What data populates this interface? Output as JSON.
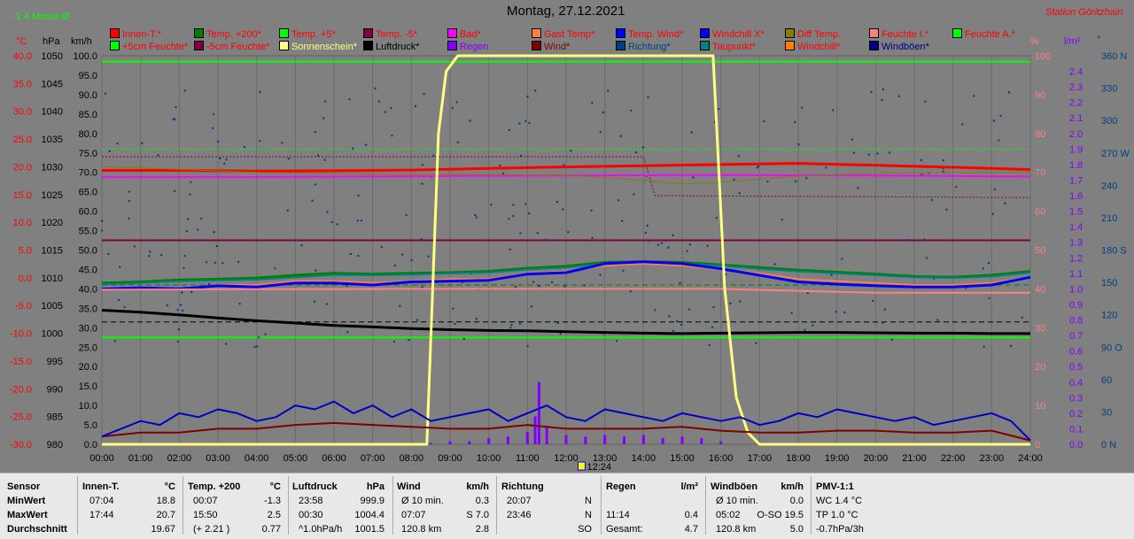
{
  "header": {
    "month_label": "-1.4 Monat-Ø",
    "title": "Montag, 27.12.2021",
    "station": "Station Göritzhain",
    "unit_c": "°C",
    "unit_hpa": "hPa",
    "unit_kmh": "km/h",
    "unit_pct": "%",
    "unit_lm2": "l/m²",
    "unit_deg": "°",
    "time_marker": "12:24"
  },
  "legend": [
    {
      "label": "Innen-T.*",
      "color": "#ff0000",
      "text_color": "#ff0000"
    },
    {
      "label": "Temp. +200*",
      "color": "#008000",
      "text_color": "#ff0000"
    },
    {
      "label": "Temp. +5*",
      "color": "#00ff00",
      "text_color": "#ff0000"
    },
    {
      "label": "Temp. -5*",
      "color": "#800040",
      "text_color": "#ff0000"
    },
    {
      "label": "Bad*",
      "color": "#ff00ff",
      "text_color": "#ff0000"
    },
    {
      "label": "Gast Temp*",
      "color": "#ff8040",
      "text_color": "#ff0000"
    },
    {
      "label": "Temp. Wind*",
      "color": "#0000ff",
      "text_color": "#ff0000"
    },
    {
      "label": "Windchill X*",
      "color": "#0000ff",
      "text_color": "#ff0000"
    },
    {
      "label": "Diff Temp.",
      "color": "#808000",
      "text_color": "#ff0000"
    },
    {
      "label": "Feuchte I.*",
      "color": "#ff8080",
      "text_color": "#ff0000"
    },
    {
      "label": "Feuchte A.*",
      "color": "#00ff00",
      "text_color": "#ff0000"
    },
    {
      "label": "+5cm Feuchte*",
      "color": "#00ff00",
      "text_color": "#ff0000"
    },
    {
      "label": "-5cm Feuchte*",
      "color": "#800040",
      "text_color": "#ff0000"
    },
    {
      "label": "Sonnenschein*",
      "color": "#ffff80",
      "text_color": "#ffff80"
    },
    {
      "label": "Luftdruck*",
      "color": "#000000",
      "text_color": "#000000"
    },
    {
      "label": "Regen",
      "color": "#8000ff",
      "text_color": "#8000ff"
    },
    {
      "label": "Wind*",
      "color": "#800000",
      "text_color": "#800000"
    },
    {
      "label": "Richtung*",
      "color": "#004080",
      "text_color": "#004080"
    },
    {
      "label": "Taupunkt*",
      "color": "#008080",
      "text_color": "#ff0000"
    },
    {
      "label": "Windchill*",
      "color": "#ff8000",
      "text_color": "#ff0000"
    },
    {
      "label": "Windböen*",
      "color": "#000080",
      "text_color": "#000080"
    }
  ],
  "chart_data": {
    "type": "line",
    "x_ticks": [
      "00:00",
      "01:00",
      "02:00",
      "03:00",
      "04:00",
      "05:00",
      "06:00",
      "07:00",
      "08:00",
      "09:00",
      "10:00",
      "11:00",
      "12:00",
      "13:00",
      "14:00",
      "15:00",
      "16:00",
      "17:00",
      "18:00",
      "19:00",
      "20:00",
      "21:00",
      "22:00",
      "23:00",
      "24:00"
    ],
    "axes": {
      "temp_c": {
        "ticks": [
          "40.0",
          "35.0",
          "30.0",
          "25.0",
          "20.0",
          "15.0",
          "10.0",
          "5.0",
          "0.0",
          "-5.0",
          "-10.0",
          "-15.0",
          "-20.0",
          "-25.0",
          "-30.0"
        ],
        "ylim": [
          -30,
          40
        ],
        "color": "#ff0000"
      },
      "pressure_hpa": {
        "ticks": [
          "1050",
          "1045",
          "1040",
          "1035",
          "1030",
          "1025",
          "1020",
          "1015",
          "1010",
          "1005",
          "1000",
          "995",
          "990",
          "985",
          "980"
        ],
        "ylim": [
          980,
          1050
        ],
        "color": "#000000"
      },
      "wind_kmh": {
        "ticks": [
          "100.0",
          "95.0",
          "90.0",
          "85.0",
          "80.0",
          "75.0",
          "70.0",
          "65.0",
          "60.0",
          "55.0",
          "50.0",
          "45.0",
          "40.0",
          "35.0",
          "30.0",
          "25.0",
          "20.0",
          "15.0",
          "10.0",
          "5.0",
          "0.0"
        ],
        "ylim": [
          0,
          100
        ],
        "color": "#000000"
      },
      "humidity_pct": {
        "ticks": [
          "100",
          "90",
          "80",
          "70",
          "60",
          "50",
          "40",
          "30",
          "20",
          "10",
          "0"
        ],
        "ylim": [
          0,
          100
        ],
        "color": "#ff8080"
      },
      "rain_lm2": {
        "ticks": [
          "2.4",
          "2.3",
          "2.2",
          "2.1",
          "2.0",
          "1.9",
          "1.8",
          "1.7",
          "1.6",
          "1.5",
          "1.4",
          "1.3",
          "1.2",
          "1.1",
          "1.0",
          "0.9",
          "0.8",
          "0.7",
          "0.6",
          "0.5",
          "0.4",
          "0.3",
          "0.2",
          "0.1",
          "0.0"
        ],
        "ylim": [
          0,
          2.5
        ],
        "color": "#8000ff"
      },
      "direction_deg": {
        "ticks": [
          "360 N",
          "330",
          "300",
          "270 W",
          "240",
          "210",
          "180 S",
          "150",
          "120",
          "90 O",
          "60",
          "30",
          "0 N"
        ],
        "ylim": [
          0,
          360
        ],
        "color": "#004080"
      }
    },
    "reference_lines": [
      {
        "name": "Temp. +5",
        "value": 98.5,
        "color": "#00ff00"
      },
      {
        "name": "Feuchte A.",
        "value": 27.5,
        "color": "#00ff00"
      },
      {
        "name": "Temp. -5",
        "value": 52.5,
        "color": "#800040"
      }
    ],
    "series": [
      {
        "name": "Innen-T.",
        "axis": "wind_kmh",
        "color": "#ff0000",
        "width": 3,
        "x": [
          0,
          2,
          4,
          6,
          8,
          10,
          12,
          14,
          16,
          18,
          20,
          22,
          24
        ],
        "y": [
          70.5,
          70.5,
          70.3,
          70.4,
          70.6,
          71.0,
          71.4,
          71.7,
          72.0,
          72.3,
          71.8,
          71.3,
          70.7
        ]
      },
      {
        "name": "Bad",
        "axis": "wind_kmh",
        "color": "#ff00ff",
        "width": 2,
        "x": [
          0,
          4,
          8,
          12,
          16,
          20,
          24
        ],
        "y": [
          68.8,
          68.8,
          69.0,
          69.2,
          69.3,
          69.2,
          68.9
        ]
      },
      {
        "name": "Diff Temp.",
        "axis": "wind_kmh",
        "color": "#808000",
        "width": 1,
        "x": [
          0,
          4,
          8,
          12,
          14,
          15,
          16,
          18,
          20,
          24
        ],
        "y": [
          71.5,
          70.0,
          69.5,
          69.3,
          68.0,
          67.0,
          67.5,
          69.0,
          69.8,
          70.0
        ]
      },
      {
        "name": "Luftdruck",
        "axis": "wind_kmh",
        "color": "#000000",
        "width": 3,
        "x": [
          0,
          1,
          2,
          3,
          4,
          5,
          6,
          7,
          8,
          9,
          10,
          11,
          12,
          13,
          14,
          15,
          16,
          17,
          18,
          19,
          20,
          21,
          22,
          23,
          24
        ],
        "y": [
          34.5,
          34.0,
          33.3,
          32.5,
          31.8,
          31.2,
          30.6,
          30.2,
          29.8,
          29.5,
          29.3,
          29.2,
          29.0,
          28.8,
          28.6,
          28.5,
          28.6,
          28.7,
          28.8,
          28.8,
          28.7,
          28.6,
          28.6,
          28.5,
          28.5
        ]
      },
      {
        "name": "Temp. +200",
        "axis": "wind_kmh",
        "color": "#008000",
        "width": 3,
        "x": [
          0,
          1,
          2,
          3,
          4,
          5,
          6,
          7,
          8,
          9,
          10,
          11,
          12,
          13,
          14,
          15,
          16,
          17,
          18,
          19,
          20,
          21,
          22,
          23,
          24
        ],
        "y": [
          41.5,
          41.8,
          42.3,
          42.5,
          42.8,
          43.5,
          44.0,
          43.8,
          44.0,
          44.2,
          44.5,
          45.3,
          45.8,
          46.8,
          47.0,
          46.8,
          46.2,
          45.5,
          44.8,
          44.3,
          43.8,
          43.2,
          43.0,
          43.5,
          44.5
        ]
      },
      {
        "name": "Taupunkt",
        "axis": "wind_kmh",
        "color": "#008080",
        "width": 2,
        "x": [
          0,
          1,
          2,
          3,
          4,
          5,
          6,
          7,
          8,
          9,
          10,
          11,
          12,
          13,
          14,
          15,
          16,
          17,
          18,
          19,
          20,
          21,
          22,
          23,
          24
        ],
        "y": [
          41.2,
          41.5,
          42.0,
          42.2,
          42.4,
          43.0,
          43.6,
          43.5,
          43.7,
          44.0,
          44.2,
          45.0,
          45.5,
          46.5,
          46.8,
          46.5,
          46.0,
          45.2,
          44.5,
          44.0,
          43.5,
          43.0,
          42.8,
          43.2,
          44.2
        ]
      },
      {
        "name": "Gast Temp",
        "axis": "wind_kmh",
        "color": "#ff8040",
        "width": 2,
        "x": [
          0,
          1,
          2,
          3,
          4,
          5,
          6,
          7,
          8,
          9,
          10,
          11,
          12,
          13,
          14,
          15,
          16,
          17,
          18,
          19,
          20,
          21,
          22,
          23,
          24
        ],
        "y": [
          40.2,
          40.5,
          40.0,
          41.0,
          41.0,
          42.0,
          42.0,
          41.5,
          42.0,
          42.5,
          42.5,
          44.0,
          44.5,
          46.0,
          46.5,
          46.0,
          45.0,
          44.0,
          42.5,
          42.0,
          41.5,
          41.0,
          41.0,
          41.5,
          43.0
        ]
      },
      {
        "name": "Temp. Wind",
        "axis": "wind_kmh",
        "color": "#0000ff",
        "width": 3,
        "x": [
          0,
          1,
          2,
          3,
          4,
          5,
          6,
          7,
          8,
          9,
          10,
          11,
          12,
          13,
          14,
          15,
          16,
          17,
          18,
          19,
          20,
          21,
          22,
          23,
          24
        ],
        "y": [
          40.0,
          40.3,
          40.0,
          40.8,
          40.5,
          41.5,
          41.5,
          41.0,
          41.8,
          42.0,
          42.2,
          43.8,
          44.2,
          46.5,
          47.0,
          46.5,
          45.2,
          43.5,
          41.8,
          41.2,
          40.8,
          40.5,
          40.5,
          41.0,
          43.0
        ]
      },
      {
        "name": "Feuchte I.",
        "axis": "wind_kmh",
        "color": "#ff8080",
        "width": 2,
        "x": [
          0,
          4,
          8,
          12,
          16,
          18,
          20,
          24
        ],
        "y": [
          39.8,
          39.9,
          40.0,
          40.0,
          40.0,
          39.5,
          39.0,
          39.0
        ]
      },
      {
        "name": "Sonnenschein",
        "axis": "wind_kmh",
        "color": "#ffff80",
        "width": 3,
        "x": [
          0,
          8.4,
          8.55,
          8.7,
          8.9,
          9.2,
          15.8,
          15.9,
          16.1,
          16.4,
          16.7,
          17.0,
          24
        ],
        "y": [
          0,
          0,
          40,
          80,
          96,
          100,
          100,
          80,
          40,
          12,
          3,
          0,
          0
        ]
      },
      {
        "name": "Wind",
        "axis": "wind_kmh",
        "color": "#800000",
        "width": 2,
        "x": [
          0,
          1,
          2,
          3,
          4,
          5,
          6,
          7,
          8,
          9,
          10,
          11,
          12,
          13,
          14,
          15,
          16,
          17,
          18,
          19,
          20,
          21,
          22,
          23,
          24
        ],
        "y": [
          2.0,
          3.0,
          3.0,
          4.0,
          4.0,
          5.0,
          5.5,
          5.0,
          4.5,
          4.0,
          4.0,
          5.0,
          4.0,
          4.0,
          4.0,
          4.5,
          3.5,
          3.0,
          3.0,
          3.5,
          3.5,
          3.0,
          3.0,
          3.5,
          1.0
        ]
      },
      {
        "name": "Windböen",
        "axis": "wind_kmh",
        "color": "#0000c0",
        "width": 2,
        "x": [
          0,
          0.5,
          1,
          1.5,
          2,
          2.5,
          3,
          3.5,
          4,
          4.5,
          5,
          5.5,
          6,
          6.5,
          7,
          7.5,
          8,
          8.5,
          9,
          9.5,
          10,
          10.5,
          11,
          11.5,
          12,
          12.5,
          13,
          13.5,
          14,
          14.5,
          15,
          15.5,
          16,
          16.5,
          17,
          17.5,
          18,
          18.5,
          19,
          19.5,
          20,
          20.5,
          21,
          21.5,
          22,
          22.5,
          23,
          23.5,
          24
        ],
        "y": [
          2,
          4,
          6,
          5,
          8,
          7,
          9,
          8,
          6,
          7,
          10,
          9,
          11,
          8,
          10,
          7,
          9,
          6,
          7,
          8,
          9,
          6,
          8,
          10,
          7,
          6,
          9,
          8,
          7,
          6,
          8,
          7,
          6,
          7,
          5,
          6,
          8,
          7,
          9,
          8,
          7,
          6,
          7,
          5,
          6,
          7,
          8,
          6,
          1
        ]
      }
    ],
    "rain_bars": {
      "axis": "rain_lm2",
      "color": "#8000ff",
      "x": [
        8.5,
        9,
        9.5,
        10,
        10.5,
        11,
        11.2,
        11.3,
        11.5,
        12,
        12.5,
        13,
        13.5,
        14,
        14.5,
        15,
        15.5,
        16
      ],
      "y": [
        0.01,
        0.02,
        0.02,
        0.04,
        0.05,
        0.08,
        0.18,
        0.4,
        0.12,
        0.06,
        0.05,
        0.06,
        0.05,
        0.06,
        0.04,
        0.05,
        0.04,
        0.02
      ]
    }
  },
  "stats": {
    "headers": [
      "Sensor",
      "Innen-T.",
      "°C",
      "Temp. +200",
      "°C",
      "Luftdruck",
      "hPa",
      "Wind",
      "km/h",
      "Richtung",
      "Regen",
      "l/m²",
      "Windböen",
      "km/h",
      "PMV-1:1"
    ],
    "rows": [
      {
        "label": "MinWert",
        "innen_time": "07:04",
        "innen_val": "18.8",
        "temp_time": "00:07",
        "temp_val": "-1.3",
        "druck_time": "23:58",
        "druck_val": "999.9",
        "wind_time": "Ø 10 min.",
        "wind_val": "0.3",
        "richt_time": "20:07",
        "richt_val": "N",
        "regen_time": "",
        "regen_val": "",
        "boen_time": "Ø 10 min.",
        "boen_val": "0.0",
        "pmv": "WC 1.4 °C"
      },
      {
        "label": "MaxWert",
        "innen_time": "17:44",
        "innen_val": "20.7",
        "temp_time": "15:50",
        "temp_val": "2.5",
        "druck_time": "00:30",
        "druck_val": "1004.4",
        "wind_time": "07:07",
        "wind_val": "S 7.0",
        "richt_time": "23:46",
        "richt_val": "N",
        "regen_time": "11:14",
        "regen_val": "0.4",
        "boen_time": "05:02",
        "boen_val": "O-SO 19.5",
        "pmv": "TP 1.0 °C"
      },
      {
        "label": "Durchschnitt",
        "innen_time": "",
        "innen_val": "19.67",
        "temp_time": "(+ 2.21 )",
        "temp_val": "0.77",
        "druck_time": "^1.0hPa/h",
        "druck_val": "1001.5",
        "wind_time": "120.8 km",
        "wind_val": "2.8",
        "richt_time": "",
        "richt_val": "SO",
        "regen_time": "Gesamt:",
        "regen_val": "4.7",
        "boen_time": "120.8 km",
        "boen_val": "5.0",
        "pmv": "-0.7hPa/3h"
      }
    ]
  }
}
